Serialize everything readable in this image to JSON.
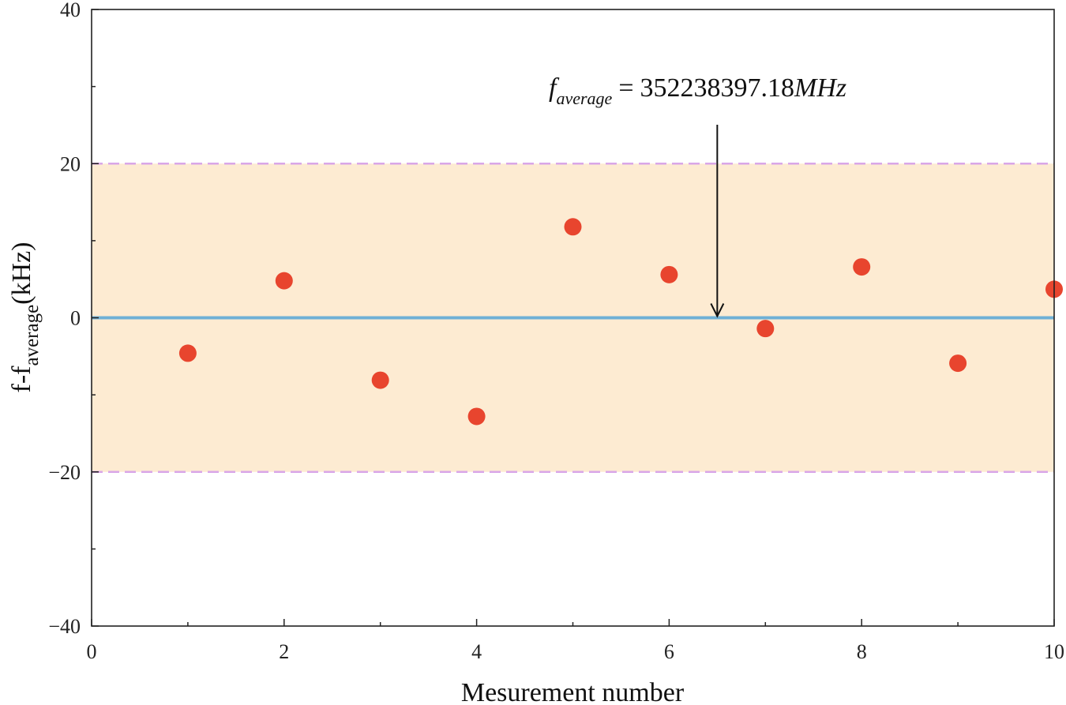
{
  "chart_data": {
    "type": "scatter",
    "xlabel": "Mesurement number",
    "ylabel": {
      "base": "f-f",
      "subscript": "average",
      "unit": "(kHz)"
    },
    "xlim": [
      0,
      10
    ],
    "ylim": [
      -40,
      40
    ],
    "xticks": [
      0,
      2,
      4,
      6,
      8,
      10
    ],
    "yticks": [
      -40,
      -20,
      0,
      20,
      40
    ],
    "ytick_labels": [
      "−40",
      "−20",
      "0",
      "20",
      "40"
    ],
    "xtick_labels": [
      "0",
      "2",
      "4",
      "6",
      "8",
      "10"
    ],
    "grid": false,
    "series": [
      {
        "x": [
          1,
          2,
          3,
          4,
          5,
          6,
          7,
          8,
          9,
          10
        ],
        "y": [
          -4.6,
          4.8,
          -8.1,
          -12.8,
          11.8,
          5.6,
          -1.4,
          6.6,
          -5.9,
          3.7
        ],
        "color": "#e8452e"
      }
    ],
    "band": {
      "y_min": -20,
      "y_max": 20,
      "fill": "#fdebd2",
      "edge_color": "#d9a6e8"
    },
    "zero_line": {
      "y": 0,
      "color": "#6fb0d6"
    },
    "annotation": {
      "symbol": "f",
      "subscript": "average",
      "equals": "=",
      "value": "352238397.18",
      "unit": "MHz",
      "arrow_x": 6.5,
      "arrow_to_y": 0
    }
  }
}
